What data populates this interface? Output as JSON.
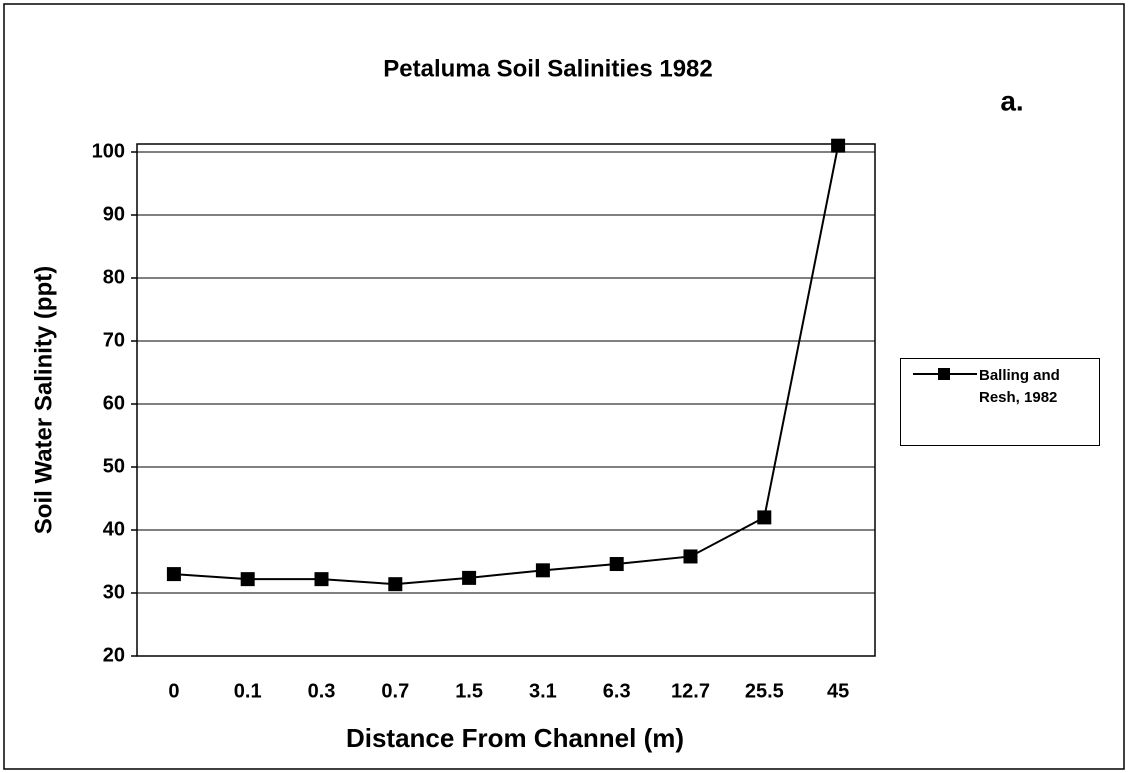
{
  "chart_data": {
    "type": "line",
    "title": "Petaluma Soil Salinities 1982",
    "annotation": "a.",
    "x_label": "Distance From Channel (m)",
    "y_label": "Soil Water Salinity (ppt)",
    "categories": [
      "0",
      "0.1",
      "0.3",
      "0.7",
      "1.5",
      "3.1",
      "6.3",
      "12.7",
      "25.5",
      "45"
    ],
    "series": [
      {
        "name": "Balling and Resh, 1982",
        "color": "#000000",
        "values": [
          33,
          32.2,
          32.2,
          31.4,
          32.4,
          33.6,
          34.6,
          35.8,
          42,
          101
        ]
      }
    ],
    "ylim": [
      20,
      100
    ],
    "yticks": [
      20,
      30,
      40,
      50,
      60,
      70,
      80,
      90,
      100
    ],
    "grid": true,
    "legend": "right"
  }
}
